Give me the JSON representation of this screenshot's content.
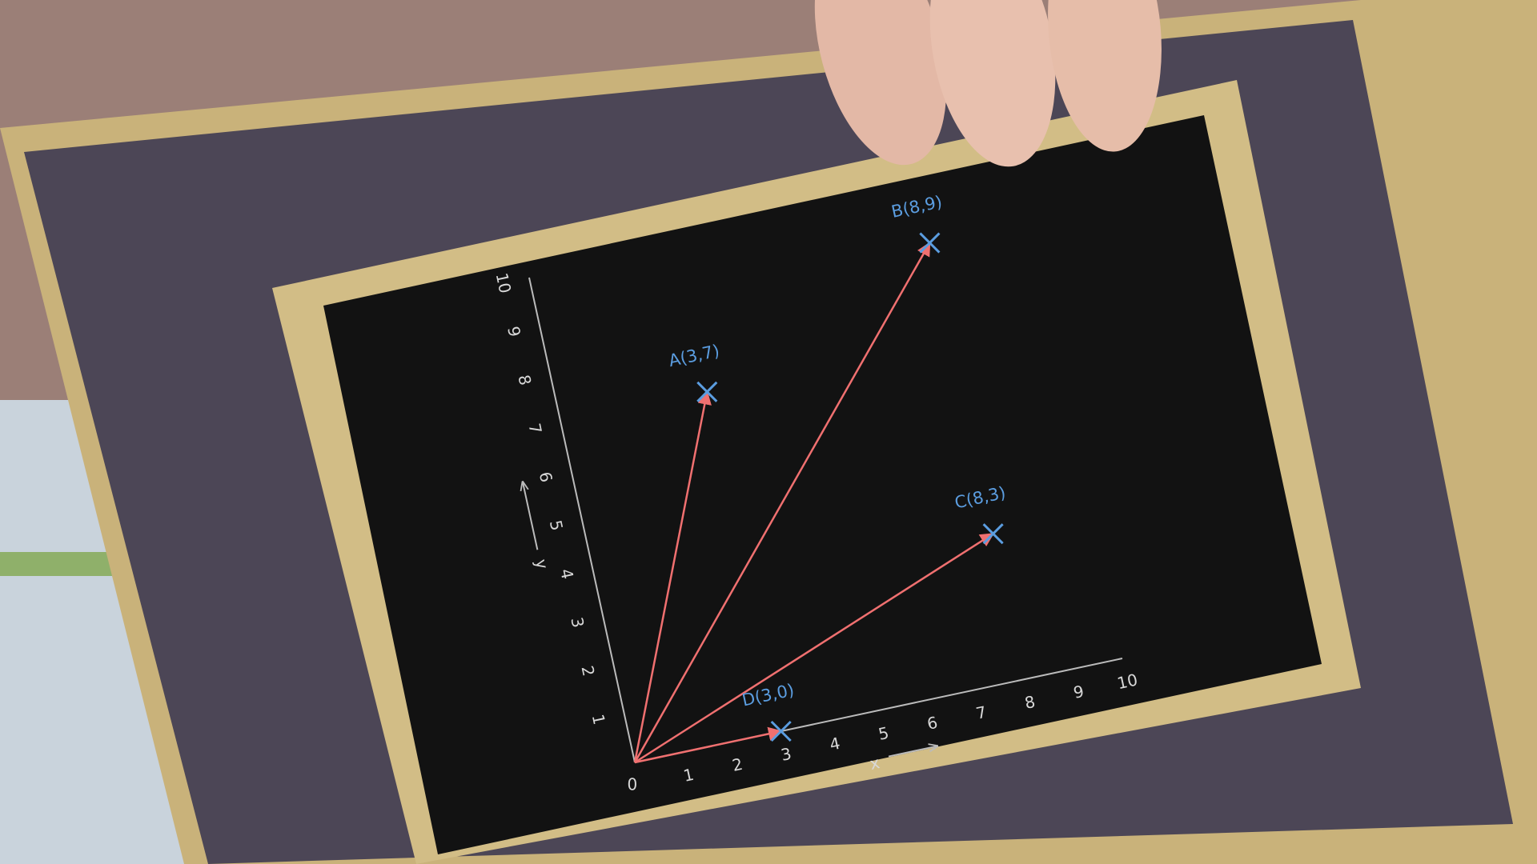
{
  "diagram": {
    "x_axis_label": "x",
    "y_axis_label": "y",
    "origin_label": "0",
    "xticks": [
      1,
      2,
      3,
      4,
      5,
      6,
      7,
      8,
      9,
      10
    ],
    "yticks": [
      1,
      2,
      3,
      4,
      5,
      6,
      7,
      8,
      9,
      10
    ],
    "points": [
      {
        "label": "A(3,7)",
        "x": 3,
        "y": 7
      },
      {
        "label": "B(8,9)",
        "x": 8,
        "y": 9
      },
      {
        "label": "C(8,3)",
        "x": 8,
        "y": 3
      },
      {
        "label": "D(3,0)",
        "x": 3,
        "y": 0
      }
    ]
  }
}
